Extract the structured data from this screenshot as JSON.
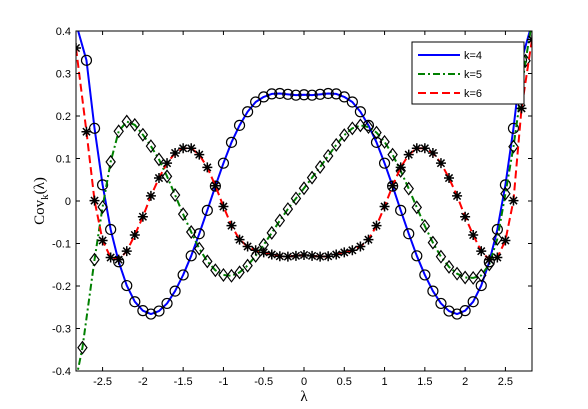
{
  "chart_data": {
    "type": "line",
    "title": "",
    "xlabel": "λ",
    "ylabel": {
      "base": "Cov",
      "sub": "k",
      "arg": "(λ)"
    },
    "xlim": [
      -2.83,
      2.83
    ],
    "ylim": [
      -0.4,
      0.4
    ],
    "xticks": [
      -2.5,
      -2,
      -1.5,
      -1,
      -0.5,
      0,
      0.5,
      1,
      1.5,
      2,
      2.5
    ],
    "xtick_labels": [
      "-2.5",
      "-2",
      "-1.5",
      "-1",
      "-0.5",
      "0",
      "0.5",
      "1",
      "1.5",
      "2",
      "2.5"
    ],
    "yticks": [
      -0.4,
      -0.3,
      -0.2,
      -0.1,
      0,
      0.1,
      0.2,
      0.3,
      0.4
    ],
    "ytick_labels": [
      "-0.4",
      "-0.3",
      "-0.2",
      "-0.1",
      "0",
      "0.1",
      "0.2",
      "0.3",
      "0.4"
    ],
    "grid": false,
    "legend_position": "top-right",
    "series": [
      {
        "name": "k=4",
        "color": "#0000ff",
        "line_style": "solid",
        "marker": "circle",
        "x": [
          -2.83,
          -2.7,
          -2.6,
          -2.5,
          -2.4,
          -2.3,
          -2.2,
          -2.1,
          -2.0,
          -1.9,
          -1.8,
          -1.7,
          -1.6,
          -1.5,
          -1.4,
          -1.3,
          -1.2,
          -1.1,
          -1.0,
          -0.9,
          -0.8,
          -0.7,
          -0.6,
          -0.5,
          -0.4,
          -0.3,
          -0.2,
          -0.1,
          0.0,
          0.1,
          0.2,
          0.3,
          0.4,
          0.5,
          0.6,
          0.7,
          0.8,
          0.9,
          1.0,
          1.1,
          1.2,
          1.3,
          1.4,
          1.5,
          1.6,
          1.7,
          1.8,
          1.9,
          2.0,
          2.1,
          2.2,
          2.3,
          2.4,
          2.5,
          2.6,
          2.7,
          2.83
        ],
        "y": [
          0.418,
          0.331,
          0.171,
          0.038,
          -0.067,
          -0.143,
          -0.199,
          -0.237,
          -0.258,
          -0.266,
          -0.259,
          -0.241,
          -0.212,
          -0.174,
          -0.129,
          -0.077,
          -0.022,
          0.035,
          0.089,
          0.138,
          0.178,
          0.21,
          0.233,
          0.245,
          0.252,
          0.253,
          0.251,
          0.249,
          0.25,
          0.249,
          0.251,
          0.253,
          0.252,
          0.245,
          0.233,
          0.21,
          0.178,
          0.138,
          0.089,
          0.035,
          -0.022,
          -0.077,
          -0.129,
          -0.174,
          -0.212,
          -0.241,
          -0.259,
          -0.266,
          -0.258,
          -0.237,
          -0.199,
          -0.143,
          -0.067,
          0.038,
          0.171,
          0.331,
          0.418
        ]
      },
      {
        "name": "k=5",
        "color": "#008000",
        "line_style": "dashdot",
        "marker": "diamond",
        "x": [
          -2.83,
          -2.75,
          -2.6,
          -2.5,
          -2.4,
          -2.3,
          -2.2,
          -2.1,
          -2.0,
          -1.9,
          -1.8,
          -1.7,
          -1.6,
          -1.5,
          -1.4,
          -1.3,
          -1.2,
          -1.1,
          -1.0,
          -0.9,
          -0.8,
          -0.7,
          -0.6,
          -0.5,
          -0.4,
          -0.3,
          -0.2,
          -0.1,
          0.0,
          0.1,
          0.2,
          0.3,
          0.4,
          0.5,
          0.6,
          0.7,
          0.8,
          0.9,
          1.0,
          1.1,
          1.2,
          1.3,
          1.4,
          1.5,
          1.6,
          1.7,
          1.8,
          1.9,
          2.0,
          2.1,
          2.2,
          2.3,
          2.4,
          2.5,
          2.6,
          2.75,
          2.83
        ],
        "y": [
          -0.42,
          -0.345,
          -0.138,
          -0.014,
          0.092,
          0.164,
          0.187,
          0.179,
          0.156,
          0.129,
          0.098,
          0.058,
          0.014,
          -0.031,
          -0.073,
          -0.112,
          -0.142,
          -0.163,
          -0.174,
          -0.176,
          -0.168,
          -0.152,
          -0.129,
          -0.103,
          -0.075,
          -0.046,
          -0.019,
          0.006,
          0.03,
          0.055,
          0.08,
          0.106,
          0.132,
          0.155,
          0.171,
          0.178,
          0.174,
          0.161,
          0.139,
          0.109,
          0.071,
          0.029,
          -0.015,
          -0.059,
          -0.098,
          -0.131,
          -0.155,
          -0.171,
          -0.18,
          -0.181,
          -0.175,
          -0.149,
          -0.089,
          0.017,
          0.128,
          0.33,
          0.42
        ]
      },
      {
        "name": "k=6",
        "color": "#ff0000",
        "line_style": "dashed",
        "marker": "star",
        "x": [
          -2.83,
          -2.7,
          -2.6,
          -2.5,
          -2.4,
          -2.3,
          -2.2,
          -2.1,
          -2.0,
          -1.9,
          -1.8,
          -1.7,
          -1.6,
          -1.5,
          -1.4,
          -1.3,
          -1.2,
          -1.1,
          -1.0,
          -0.9,
          -0.8,
          -0.7,
          -0.6,
          -0.5,
          -0.4,
          -0.3,
          -0.2,
          -0.1,
          0.0,
          0.1,
          0.2,
          0.3,
          0.4,
          0.5,
          0.6,
          0.7,
          0.8,
          0.9,
          1.0,
          1.1,
          1.2,
          1.3,
          1.4,
          1.5,
          1.6,
          1.7,
          1.8,
          1.9,
          2.0,
          2.1,
          2.2,
          2.3,
          2.4,
          2.5,
          2.6,
          2.7,
          2.83
        ],
        "y": [
          0.36,
          0.163,
          0.001,
          -0.093,
          -0.133,
          -0.138,
          -0.118,
          -0.08,
          -0.037,
          0.012,
          0.054,
          0.089,
          0.113,
          0.124,
          0.124,
          0.109,
          0.079,
          0.036,
          -0.013,
          -0.058,
          -0.091,
          -0.107,
          -0.116,
          -0.121,
          -0.126,
          -0.13,
          -0.131,
          -0.129,
          -0.127,
          -0.129,
          -0.131,
          -0.13,
          -0.126,
          -0.121,
          -0.116,
          -0.107,
          -0.091,
          -0.058,
          -0.013,
          0.036,
          0.079,
          0.109,
          0.124,
          0.124,
          0.113,
          0.089,
          0.054,
          0.012,
          -0.037,
          -0.08,
          -0.118,
          -0.138,
          -0.133,
          -0.093,
          0.001,
          0.218,
          0.38
        ]
      }
    ]
  }
}
